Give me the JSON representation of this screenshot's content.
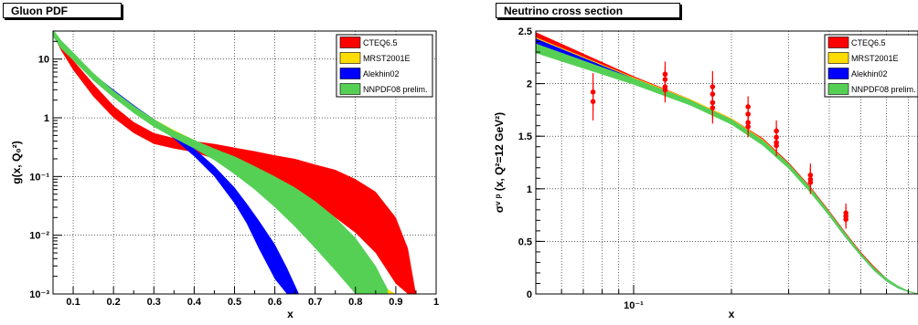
{
  "chart_data": [
    {
      "type": "area",
      "title": "Gluon PDF",
      "xlabel": "x",
      "ylabel": "g(x, Q₀²)",
      "xlim": [
        0.05,
        1.0
      ],
      "ylim": [
        0.001,
        30
      ],
      "yscale": "log",
      "grid": true,
      "legend_position": "top-right",
      "x_tick_labels": [
        "0.1",
        "0.2",
        "0.3",
        "0.4",
        "0.5",
        "0.6",
        "0.7",
        "0.8",
        "0.9",
        "1"
      ],
      "y_tick_labels": [
        "10⁻³",
        "10⁻²",
        "10⁻¹",
        "1",
        "10"
      ],
      "series": [
        {
          "name": "CTEQ6.5",
          "color": "#ff0000",
          "x": [
            0.05,
            0.07,
            0.1,
            0.15,
            0.2,
            0.25,
            0.3,
            0.35,
            0.4,
            0.45,
            0.5,
            0.55,
            0.6,
            0.65,
            0.7,
            0.75,
            0.8,
            0.85,
            0.9,
            0.93,
            0.95
          ],
          "upper": [
            28,
            18,
            9.5,
            3.8,
            1.6,
            0.85,
            0.55,
            0.45,
            0.4,
            0.36,
            0.31,
            0.27,
            0.23,
            0.2,
            0.16,
            0.13,
            0.09,
            0.055,
            0.02,
            0.006,
            0.001
          ],
          "lower": [
            26,
            14,
            6.5,
            2.3,
            1.0,
            0.55,
            0.36,
            0.3,
            0.26,
            0.2,
            0.14,
            0.1,
            0.07,
            0.05,
            0.033,
            0.02,
            0.011,
            0.005,
            0.0015,
            0.001,
            0.001
          ]
        },
        {
          "name": "MRST2001E",
          "color": "#ffdd00",
          "x": [
            0.05,
            0.07,
            0.1,
            0.15,
            0.2,
            0.25,
            0.3,
            0.35,
            0.4,
            0.45,
            0.5,
            0.55,
            0.6,
            0.65,
            0.7,
            0.75,
            0.8,
            0.85,
            0.88,
            0.9
          ],
          "upper": [
            30,
            20,
            11,
            5,
            2.6,
            1.5,
            0.95,
            0.62,
            0.42,
            0.28,
            0.18,
            0.11,
            0.065,
            0.037,
            0.02,
            0.01,
            0.0045,
            0.002,
            0.0012,
            0.001
          ],
          "lower": [
            28,
            18,
            10,
            4.6,
            2.4,
            1.35,
            0.85,
            0.55,
            0.36,
            0.23,
            0.14,
            0.085,
            0.048,
            0.026,
            0.013,
            0.006,
            0.0025,
            0.0012,
            0.001,
            0.001
          ]
        },
        {
          "name": "Alekhin02",
          "color": "#0000ff",
          "x": [
            0.05,
            0.07,
            0.1,
            0.15,
            0.2,
            0.25,
            0.3,
            0.35,
            0.4,
            0.45,
            0.5,
            0.53,
            0.56,
            0.6,
            0.63,
            0.66
          ],
          "upper": [
            28,
            19,
            11.5,
            5.6,
            3.0,
            1.65,
            0.95,
            0.55,
            0.3,
            0.15,
            0.065,
            0.035,
            0.018,
            0.007,
            0.0028,
            0.001
          ],
          "lower": [
            27,
            18,
            11,
            5.2,
            2.7,
            1.45,
            0.8,
            0.44,
            0.22,
            0.1,
            0.035,
            0.016,
            0.006,
            0.0018,
            0.001,
            0.001
          ]
        },
        {
          "name": "NNPDF08 prelim.",
          "color": "#55d055",
          "x": [
            0.05,
            0.07,
            0.1,
            0.15,
            0.2,
            0.25,
            0.3,
            0.35,
            0.4,
            0.45,
            0.5,
            0.55,
            0.6,
            0.65,
            0.7,
            0.75,
            0.8,
            0.85,
            0.88
          ],
          "upper": [
            32,
            21,
            13,
            5.8,
            2.9,
            1.6,
            0.95,
            0.6,
            0.42,
            0.3,
            0.22,
            0.15,
            0.1,
            0.065,
            0.038,
            0.02,
            0.009,
            0.003,
            0.0012
          ],
          "lower": [
            24,
            15,
            9.5,
            4.3,
            2.2,
            1.2,
            0.7,
            0.45,
            0.3,
            0.19,
            0.11,
            0.06,
            0.03,
            0.014,
            0.006,
            0.0025,
            0.001,
            0.001,
            0.001
          ]
        }
      ]
    },
    {
      "type": "line",
      "title": "Neutrino cross section",
      "xlabel": "x",
      "ylabel": "σᵛ ᵖ (x, Q²=12 GeV²)",
      "xlim": [
        0.05,
        0.75
      ],
      "ylim": [
        0,
        2.5
      ],
      "xscale": "log",
      "grid": true,
      "legend_position": "top-right",
      "x_tick_labels": [
        "10⁻¹"
      ],
      "y_tick_labels": [
        "0",
        "0.5",
        "1",
        "1.5",
        "2",
        "2.5"
      ],
      "series": [
        {
          "name": "CTEQ6.5",
          "color": "#ff0000",
          "x": [
            0.05,
            0.1,
            0.15,
            0.2,
            0.25,
            0.3,
            0.35,
            0.4,
            0.45,
            0.5,
            0.55,
            0.6,
            0.65,
            0.7,
            0.75
          ],
          "upper": [
            2.49,
            2.07,
            1.85,
            1.67,
            1.48,
            1.25,
            1.02,
            0.79,
            0.58,
            0.4,
            0.26,
            0.15,
            0.07,
            0.025,
            0.0
          ],
          "lower": [
            2.4,
            2.03,
            1.81,
            1.63,
            1.44,
            1.21,
            0.98,
            0.75,
            0.55,
            0.37,
            0.23,
            0.13,
            0.06,
            0.02,
            0.0
          ]
        },
        {
          "name": "MRST2001E",
          "color": "#ffdd00",
          "x": [
            0.05,
            0.1,
            0.15,
            0.2,
            0.25,
            0.3,
            0.35,
            0.4,
            0.45,
            0.5,
            0.55,
            0.6,
            0.65,
            0.7,
            0.75
          ],
          "upper": [
            2.44,
            2.06,
            1.85,
            1.67,
            1.47,
            1.24,
            1.01,
            0.78,
            0.57,
            0.39,
            0.25,
            0.14,
            0.07,
            0.025,
            0.0
          ],
          "lower": [
            2.39,
            2.03,
            1.82,
            1.64,
            1.44,
            1.21,
            0.98,
            0.75,
            0.55,
            0.37,
            0.23,
            0.13,
            0.06,
            0.02,
            0.0
          ]
        },
        {
          "name": "Alekhin02",
          "color": "#0000ff",
          "x": [
            0.05,
            0.1,
            0.15,
            0.2,
            0.25,
            0.3,
            0.35,
            0.4,
            0.45,
            0.5,
            0.55,
            0.6,
            0.65,
            0.7,
            0.75
          ],
          "upper": [
            2.43,
            2.05,
            1.84,
            1.66,
            1.46,
            1.23,
            1.0,
            0.77,
            0.56,
            0.38,
            0.24,
            0.13,
            0.06,
            0.02,
            0.0
          ],
          "lower": [
            2.38,
            2.02,
            1.81,
            1.63,
            1.43,
            1.2,
            0.97,
            0.74,
            0.53,
            0.36,
            0.22,
            0.12,
            0.055,
            0.018,
            0.0
          ]
        },
        {
          "name": "NNPDF08 prelim.",
          "color": "#55d055",
          "x": [
            0.05,
            0.1,
            0.15,
            0.2,
            0.25,
            0.3,
            0.35,
            0.4,
            0.45,
            0.5,
            0.55,
            0.6,
            0.65,
            0.7,
            0.75
          ],
          "upper": [
            2.38,
            2.05,
            1.84,
            1.66,
            1.46,
            1.24,
            1.01,
            0.78,
            0.57,
            0.39,
            0.25,
            0.15,
            0.08,
            0.03,
            0.005
          ],
          "lower": [
            2.29,
            1.99,
            1.79,
            1.61,
            1.41,
            1.19,
            0.96,
            0.74,
            0.53,
            0.36,
            0.22,
            0.12,
            0.055,
            0.018,
            0.0
          ]
        }
      ],
      "data_points": {
        "color": "#ff0000",
        "points": [
          {
            "x": 0.075,
            "y": 1.92,
            "err": 0.18
          },
          {
            "x": 0.075,
            "y": 1.83,
            "err": 0.18
          },
          {
            "x": 0.125,
            "y": 2.09,
            "err": 0.12
          },
          {
            "x": 0.125,
            "y": 2.04,
            "err": 0.12
          },
          {
            "x": 0.125,
            "y": 1.97,
            "err": 0.12
          },
          {
            "x": 0.125,
            "y": 1.94,
            "err": 0.12
          },
          {
            "x": 0.175,
            "y": 1.97,
            "err": 0.15
          },
          {
            "x": 0.175,
            "y": 1.9,
            "err": 0.15
          },
          {
            "x": 0.175,
            "y": 1.82,
            "err": 0.15
          },
          {
            "x": 0.175,
            "y": 1.77,
            "err": 0.15
          },
          {
            "x": 0.225,
            "y": 1.78,
            "err": 0.1
          },
          {
            "x": 0.225,
            "y": 1.71,
            "err": 0.1
          },
          {
            "x": 0.225,
            "y": 1.63,
            "err": 0.1
          },
          {
            "x": 0.225,
            "y": 1.59,
            "err": 0.1
          },
          {
            "x": 0.275,
            "y": 1.55,
            "err": 0.1
          },
          {
            "x": 0.275,
            "y": 1.49,
            "err": 0.1
          },
          {
            "x": 0.275,
            "y": 1.44,
            "err": 0.1
          },
          {
            "x": 0.275,
            "y": 1.41,
            "err": 0.1
          },
          {
            "x": 0.35,
            "y": 1.13,
            "err": 0.11
          },
          {
            "x": 0.35,
            "y": 1.09,
            "err": 0.11
          },
          {
            "x": 0.35,
            "y": 1.06,
            "err": 0.11
          },
          {
            "x": 0.45,
            "y": 0.77,
            "err": 0.09
          },
          {
            "x": 0.45,
            "y": 0.74,
            "err": 0.09
          },
          {
            "x": 0.45,
            "y": 0.71,
            "err": 0.09
          }
        ]
      }
    }
  ]
}
